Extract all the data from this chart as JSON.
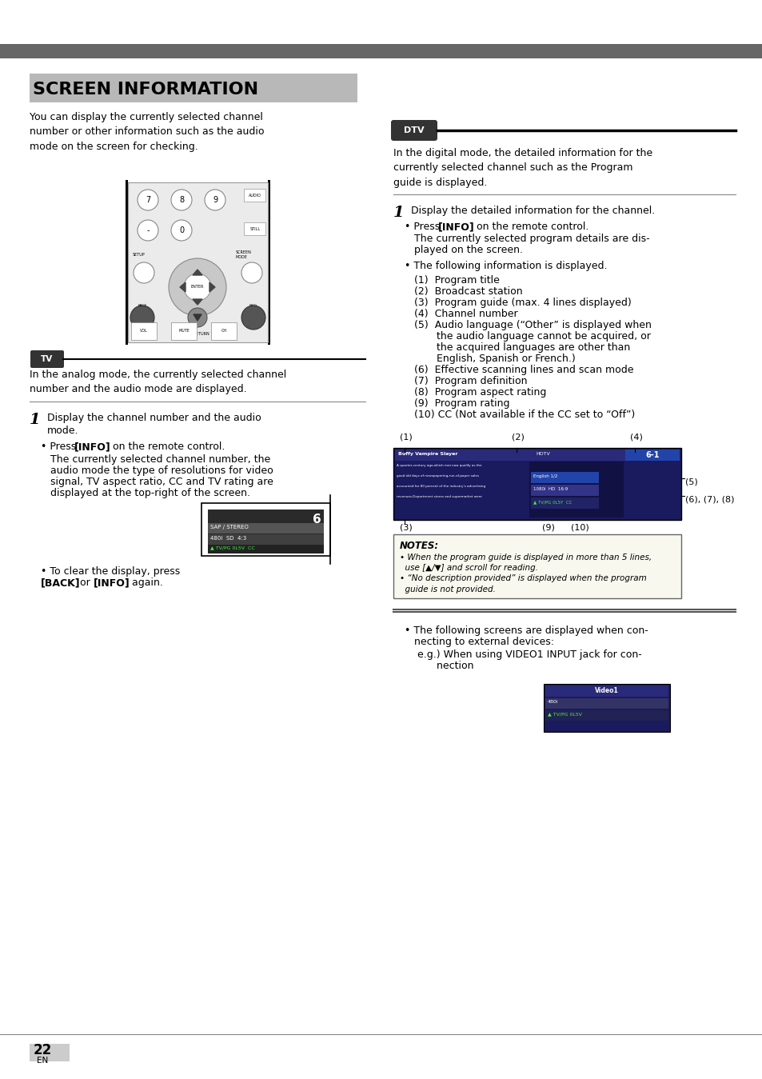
{
  "page_bg": "#ffffff",
  "top_bar_color": "#666666",
  "title": "SCREEN INFORMATION",
  "page_number": "22",
  "page_label": "EN",
  "intro_text": "You can display the currently selected channel\nnumber or other information such as the audio\nmode on the screen for checking.",
  "tv_label": "TV",
  "tv_section_text": "In the analog mode, the currently selected channel\nnumber and the audio mode are displayed.",
  "step1_left_a": "Display the channel number and the audio",
  "step1_left_b": "mode.",
  "press_info_left": "Press [INFO] on the remote control.",
  "sub_text_left": "The currently selected channel number, the\naudio mode the type of resolutions for video\nsignal, TV aspect ratio, CC and TV rating are\ndisplayed at the top-right of the screen.",
  "clear_text": "To clear the display, press [BACK] or [INFO]\nagain.",
  "dtv_label": "DTV",
  "dtv_intro": "In the digital mode, the detailed information for the\ncurrently selected channel such as the Program\nguide is displayed.",
  "step1_right": "Display the detailed information for the channel.",
  "press_info_right": "Press [INFO] on the remote control.",
  "sub_text_right": "The currently selected program details are dis-\nplayed on the screen.",
  "following_info": "The following information is displayed.",
  "items_right": [
    "(1)  Program title",
    "(2)  Broadcast station",
    "(3)  Program guide (max. 4 lines displayed)",
    "(4)  Channel number",
    "(5)  Audio language (“Other” is displayed when",
    "       the audio language cannot be acquired, or",
    "       the acquired languages are other than",
    "       English, Spanish or French.)",
    "(6)  Effective scanning lines and scan mode",
    "(7)  Program definition",
    "(8)  Program aspect rating",
    "(9)  Program rating",
    "(10) CC (Not available if the CC set to “Off”)"
  ],
  "notes_title": "NOTES:",
  "notes_text": "• When the program guide is displayed in more than 5 lines,\n  use [▲/▼] and scroll for reading.\n• “No description provided” is displayed when the program\n  guide is not provided.",
  "bullet3_line1": "The following screens are displayed when con-",
  "bullet3_line2": "necting to external devices:",
  "bullet3_line3": "e.g.) When using VIDEO1 INPUT jack for con-",
  "bullet3_line4": "      nection"
}
